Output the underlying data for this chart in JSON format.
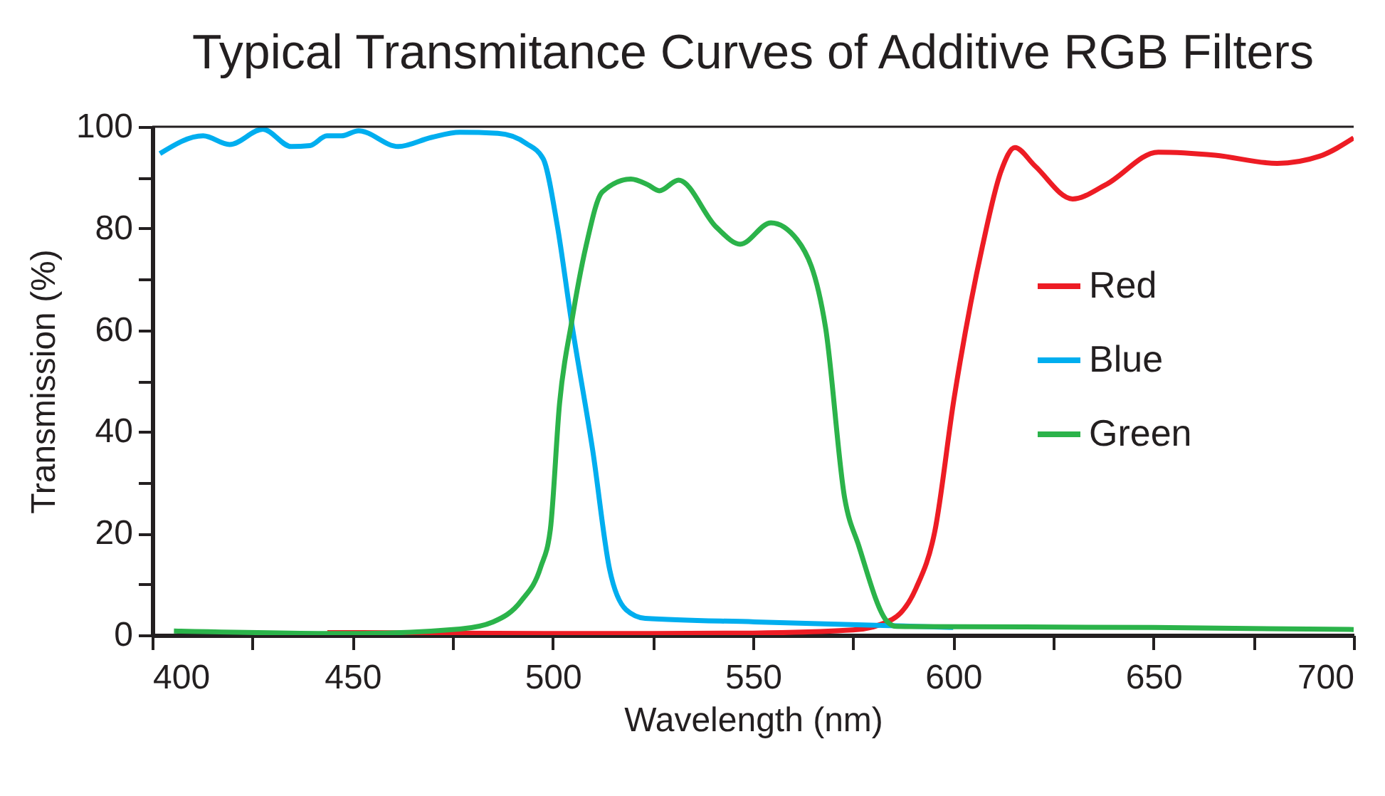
{
  "chart_data": {
    "type": "line",
    "title": "Typical Transmitance Curves of Additive RGB Filters",
    "xlabel": "Wavelength (nm)",
    "ylabel": "Transmission (%)",
    "xlim": [
      400,
      700
    ],
    "ylim": [
      0,
      100
    ],
    "xticks": [
      400,
      {
        "value": 425,
        "label": null
      },
      450,
      {
        "value": 475,
        "label": null
      },
      500,
      {
        "value": 525,
        "label": null
      },
      550,
      {
        "value": 575,
        "label": null
      },
      600,
      {
        "value": 625,
        "label": null
      },
      650,
      {
        "value": 675,
        "label": null
      },
      700
    ],
    "yticks": [
      0,
      {
        "value": 10,
        "label": null
      },
      20,
      {
        "value": 30,
        "label": null
      },
      40,
      {
        "value": 50,
        "label": null
      },
      60,
      {
        "value": 70,
        "label": null
      },
      80,
      {
        "value": 90,
        "label": null
      },
      100
    ],
    "grid": false,
    "legend": "right",
    "marker": "none",
    "line_style": "solid",
    "series": [
      {
        "name": "Red",
        "color": "#ed1c24",
        "x": [
          443.7,
          475,
          500,
          525,
          550,
          575,
          584.8,
          590.7,
          595.4,
          600.2,
          607.3,
          612,
          615.4,
          620.4,
          629.8,
          638.1,
          651.2,
          665.4,
          680.9,
          691.5,
          700
        ],
        "values": [
          0.5,
          0.4,
          0.3,
          0.3,
          0.4,
          1.0,
          3.1,
          9.2,
          20.4,
          46.5,
          76.5,
          91.4,
          95.9,
          92.3,
          85.8,
          88.6,
          95,
          94.4,
          92.8,
          94.2,
          97.8
        ]
      },
      {
        "name": "Blue",
        "color": "#00aeef",
        "x": [
          401.9,
          412.7,
          419.3,
          427.6,
          434.7,
          439.4,
          443.6,
          447.2,
          451.5,
          461.4,
          469.7,
          476.8,
          486.3,
          493.4,
          497.6,
          501.1,
          504.7,
          510,
          514.2,
          518.3,
          523.1,
          550.4,
          582.4,
          600
        ],
        "values": [
          94.7,
          98.2,
          96.5,
          99.5,
          96.1,
          96.3,
          98.2,
          98.2,
          99.2,
          96.1,
          97.9,
          98.9,
          98.7,
          96.7,
          93.7,
          80.7,
          61.5,
          36.2,
          12.9,
          5.0,
          3.3,
          2.6,
          1.9,
          1.5
        ]
      },
      {
        "name": "Green",
        "color": "#2bb34a",
        "x": [
          405.4,
          449.5,
          476.8,
          485.1,
          492.2,
          497,
          499.4,
          501.7,
          504.7,
          508.3,
          512.4,
          519.5,
          523.7,
          526.6,
          531.4,
          540.9,
          546.8,
          554.5,
          561,
          568.1,
          572.9,
          576.4,
          583.6,
          585.9,
          650,
          700
        ],
        "values": [
          0.8,
          0.3,
          1.2,
          2.6,
          6.8,
          13.4,
          20.8,
          45.6,
          61.5,
          76.5,
          87.2,
          89.7,
          88.6,
          87.4,
          89.5,
          80.2,
          76.9,
          81.1,
          77.8,
          60.6,
          26.9,
          17.6,
          2.6,
          1.7,
          1.5,
          1.1
        ]
      }
    ]
  }
}
